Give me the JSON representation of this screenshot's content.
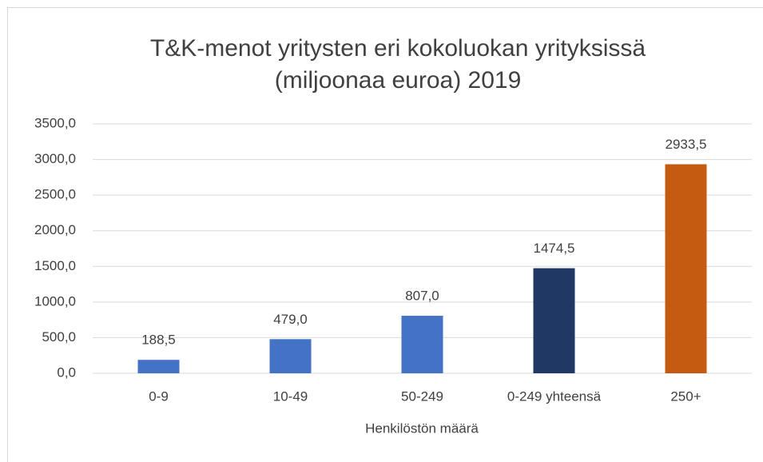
{
  "chart_data": {
    "type": "bar",
    "title": [
      "T&K-menot yritysten eri kokoluokan yrityksissä",
      "(miljoonaa euroa) 2019"
    ],
    "xlabel": "Henkilöstön määrä",
    "categories": [
      "0-9",
      "10-49",
      "50-249",
      "0-249 yhteensä",
      "250+"
    ],
    "values": [
      188.5,
      479.0,
      807.0,
      1474.5,
      2933.5
    ],
    "value_labels": [
      "188,5",
      "479,0",
      "807,0",
      "1474,5",
      "2933,5"
    ],
    "colors": [
      "#4472c4",
      "#4472c4",
      "#4472c4",
      "#1f3864",
      "#c55a11"
    ],
    "ylim": [
      0,
      3500
    ],
    "yticks": [
      {
        "value": 0,
        "label": "0,0"
      },
      {
        "value": 500,
        "label": "500,0"
      },
      {
        "value": 1000,
        "label": "1000,0"
      },
      {
        "value": 1500,
        "label": "1500,0"
      },
      {
        "value": 2000,
        "label": "2000,0"
      },
      {
        "value": 2500,
        "label": "2500,0"
      },
      {
        "value": 3000,
        "label": "3000,0"
      },
      {
        "value": 3500,
        "label": "3500,0"
      }
    ],
    "grid": true
  }
}
